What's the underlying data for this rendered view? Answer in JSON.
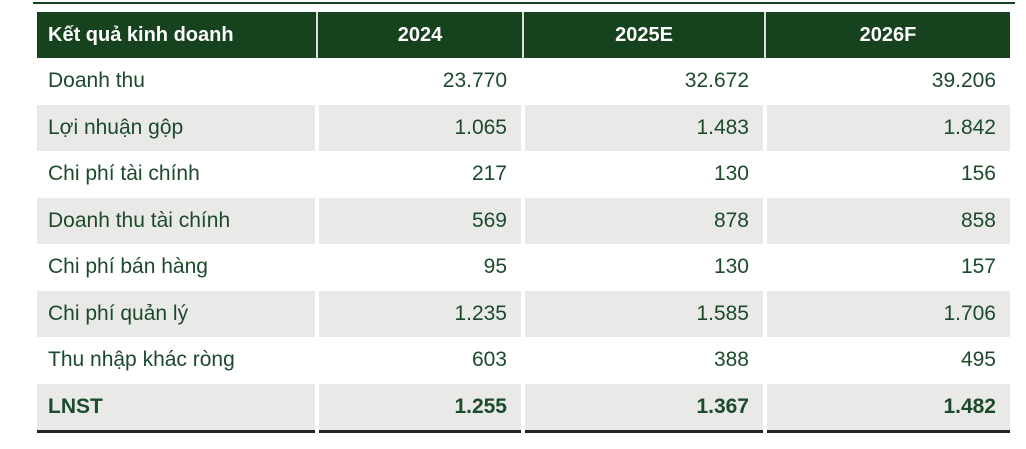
{
  "chart_data": {
    "type": "table",
    "title": "Kết quả kinh doanh",
    "columns": [
      "Kết quả kinh doanh",
      "2024",
      "2025E",
      "2026F"
    ],
    "rows": [
      [
        "Doanh thu",
        23770,
        32672,
        39206
      ],
      [
        "Lợi nhuận gộp",
        1065,
        1483,
        1842
      ],
      [
        "Chi phí tài chính",
        217,
        130,
        156
      ],
      [
        "Doanh thu tài chính",
        569,
        878,
        858
      ],
      [
        "Chi phí bán hàng",
        95,
        130,
        157
      ],
      [
        "Chi phí quản lý",
        1235,
        1585,
        1706
      ],
      [
        "Thu nhập khác ròng",
        603,
        388,
        495
      ],
      [
        "LNST",
        1255,
        1367,
        1482
      ]
    ],
    "legend_position": "none",
    "grid": "off"
  },
  "table": {
    "header": {
      "label": "Kết quả kinh doanh",
      "columns": [
        "2024",
        "2025E",
        "2026F"
      ]
    },
    "rows": [
      {
        "label": "Doanh thu",
        "values": [
          "23.770",
          "32.672",
          "39.206"
        ]
      },
      {
        "label": "Lợi nhuận gộp",
        "values": [
          "1.065",
          "1.483",
          "1.842"
        ]
      },
      {
        "label": "Chi phí tài chính",
        "values": [
          "217",
          "130",
          "156"
        ]
      },
      {
        "label": "Doanh thu tài chính",
        "values": [
          "569",
          "878",
          "858"
        ]
      },
      {
        "label": "Chi phí bán hàng",
        "values": [
          "95",
          "130",
          "157"
        ]
      },
      {
        "label": "Chi phí quản lý",
        "values": [
          "1.235",
          "1.585",
          "1.706"
        ]
      },
      {
        "label": "Thu nhập khác ròng",
        "values": [
          "603",
          "388",
          "495"
        ]
      },
      {
        "label": "LNST",
        "values": [
          "1.255",
          "1.367",
          "1.482"
        ]
      }
    ]
  },
  "colors": {
    "header_bg": "#17421E",
    "header_text": "#FFFFFF",
    "body_text": "#1C4A2A",
    "shaded_row_bg": "#E9E9E7",
    "bottom_border": "#232323",
    "top_line": "#17421E"
  }
}
